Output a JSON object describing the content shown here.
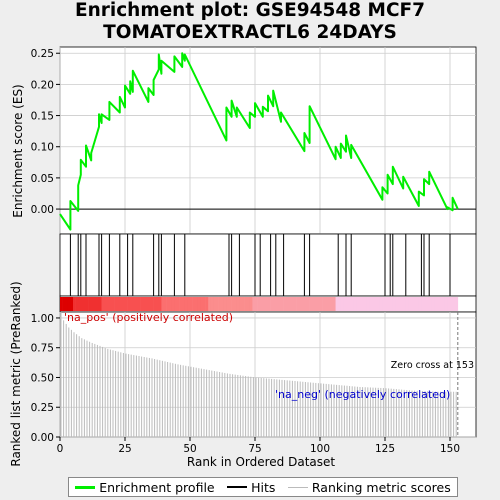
{
  "title_line1": "Enrichment plot: GSE94548 MCF7",
  "title_line2": "TOMATOEXTRACTL6 24DAYS",
  "colors": {
    "es_line": "#00ee00",
    "hits": "#000000",
    "metric_bars": "#bbbbbb",
    "positive_label": "#cc0000",
    "negative_label": "#0000cc",
    "grid": "#cccccc"
  },
  "legend": {
    "items": [
      {
        "label": "Enrichment profile",
        "color": "#00ee00"
      },
      {
        "label": "Hits",
        "color": "#000000"
      },
      {
        "label": "Ranking metric scores",
        "color": "#bbbbbb"
      }
    ]
  },
  "chart_data": [
    {
      "type": "line",
      "panel": "enrichment",
      "ylabel": "Enrichment score (ES)",
      "xlim": [
        0,
        160
      ],
      "ylim": [
        -0.04,
        0.26
      ],
      "yticks": [
        0.0,
        0.05,
        0.1,
        0.15,
        0.2,
        0.25
      ],
      "ytick_labels": [
        "0.00",
        "0.05",
        "0.10",
        "0.15",
        "0.20",
        "0.25"
      ],
      "grid": true,
      "series": [
        {
          "x": [
            0,
            4,
            4,
            7,
            7,
            8,
            8,
            10,
            10,
            12,
            12,
            15,
            15,
            16,
            16,
            19,
            19,
            23,
            23,
            25,
            25,
            27,
            27,
            28,
            28,
            34,
            34,
            36,
            36,
            38,
            38,
            39,
            39,
            44,
            44,
            47,
            47,
            48,
            48,
            64,
            64,
            66,
            66,
            68,
            68,
            73,
            73,
            75,
            75,
            78,
            78,
            80,
            80,
            82,
            82,
            85,
            85,
            94,
            94,
            96,
            96,
            106,
            106,
            108,
            108,
            110,
            110,
            112,
            112,
            124,
            124,
            126,
            126,
            128,
            128,
            132,
            132,
            138,
            138,
            140,
            140,
            142,
            142,
            149,
            149,
            151,
            151,
            153
          ],
          "y": [
            -0.008,
            -0.033,
            0.013,
            -0.003,
            0.038,
            0.055,
            0.079,
            0.068,
            0.102,
            0.078,
            0.09,
            0.132,
            0.152,
            0.138,
            0.152,
            0.143,
            0.172,
            0.155,
            0.18,
            0.163,
            0.198,
            0.185,
            0.205,
            0.188,
            0.222,
            0.172,
            0.194,
            0.183,
            0.207,
            0.224,
            0.248,
            0.217,
            0.238,
            0.22,
            0.245,
            0.228,
            0.25,
            0.238,
            0.248,
            0.11,
            0.163,
            0.148,
            0.174,
            0.148,
            0.163,
            0.13,
            0.155,
            0.148,
            0.17,
            0.148,
            0.164,
            0.157,
            0.182,
            0.165,
            0.19,
            0.14,
            0.155,
            0.093,
            0.122,
            0.106,
            0.165,
            0.08,
            0.1,
            0.082,
            0.105,
            0.092,
            0.118,
            0.082,
            0.103,
            0.015,
            0.035,
            0.025,
            0.055,
            0.04,
            0.068,
            0.033,
            0.052,
            0.005,
            0.028,
            0.022,
            0.048,
            0.04,
            0.06,
            0.0,
            0.003,
            -0.002,
            0.018,
            0.0
          ]
        }
      ]
    },
    {
      "type": "hits",
      "panel": "hits",
      "xlim": [
        0,
        160
      ],
      "hit_ranks": [
        4,
        7,
        8,
        10,
        15,
        16,
        19,
        23,
        26,
        28,
        36,
        38,
        39,
        44,
        48,
        65,
        66,
        69,
        75,
        77,
        81,
        83,
        86,
        94,
        96,
        107,
        110,
        112,
        125,
        127,
        128,
        133,
        139,
        140,
        142,
        150
      ]
    },
    {
      "type": "area",
      "panel": "ranking",
      "ylabel": "Ranked list metric (PreRanked)",
      "xlabel": "Rank in Ordered Dataset",
      "xlim": [
        0,
        160
      ],
      "ylim": [
        0,
        1.05
      ],
      "xticks": [
        0,
        25,
        50,
        75,
        100,
        125,
        150
      ],
      "yticks": [
        0.0,
        0.25,
        0.5,
        0.75,
        1.0
      ],
      "ytick_labels": [
        "0.00",
        "0.25",
        "0.50",
        "0.75",
        "1.00"
      ],
      "n_ranks": 153,
      "metric_anchor_ranks": [
        0,
        1,
        3,
        5,
        8,
        12,
        18,
        25,
        35,
        45,
        55,
        65,
        75,
        85,
        95,
        105,
        115,
        125,
        135,
        145,
        152
      ],
      "metric_anchor_values": [
        1.07,
        0.98,
        0.92,
        0.88,
        0.83,
        0.79,
        0.74,
        0.7,
        0.66,
        0.61,
        0.57,
        0.53,
        0.5,
        0.48,
        0.46,
        0.44,
        0.42,
        0.41,
        0.39,
        0.38,
        0.38
      ],
      "positive_label": "'na_pos' (positively correlated)",
      "negative_label": "'na_neg' (negatively correlated)",
      "zero_cross_label": "Zero cross at 153",
      "zero_cross_rank": 153
    }
  ]
}
